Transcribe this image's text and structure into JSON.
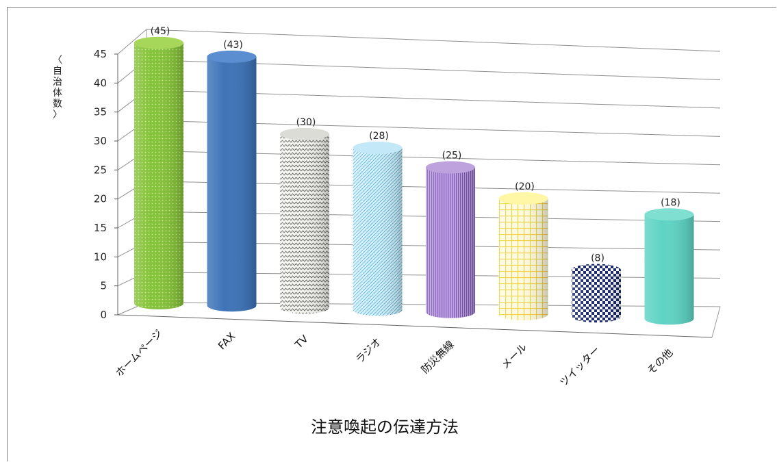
{
  "chart_data": {
    "type": "bar",
    "style": "3d-cylinder",
    "categories": [
      "ホームページ",
      "FAX",
      "TV",
      "ラジオ",
      "防災無線",
      "メール",
      "ツイッター",
      "その他"
    ],
    "values": [
      45,
      43,
      30,
      28,
      25,
      20,
      8,
      18
    ],
    "data_labels": [
      "(45)",
      "(43)",
      "(30)",
      "(28)",
      "(25)",
      "(20)",
      "(8)",
      "(18)"
    ],
    "ylabel": "〈自治体数〉",
    "xlabel": "注意喚起の伝達方法",
    "ylim": [
      0,
      45
    ],
    "yticks": [
      "0",
      "5",
      "10",
      "15",
      "20",
      "25",
      "30",
      "35",
      "40",
      "45"
    ],
    "grid": true,
    "colors": [
      "#8cc63f",
      "#3f74b8",
      "#c9c9c4",
      "#a8dcf0",
      "#a988cf",
      "#fff27a",
      "#1b2a6e",
      "#5fd4c4"
    ],
    "patterns": [
      "dots",
      "solid",
      "zigzag",
      "diagonal",
      "vertical",
      "grid",
      "checker",
      "solid"
    ]
  }
}
